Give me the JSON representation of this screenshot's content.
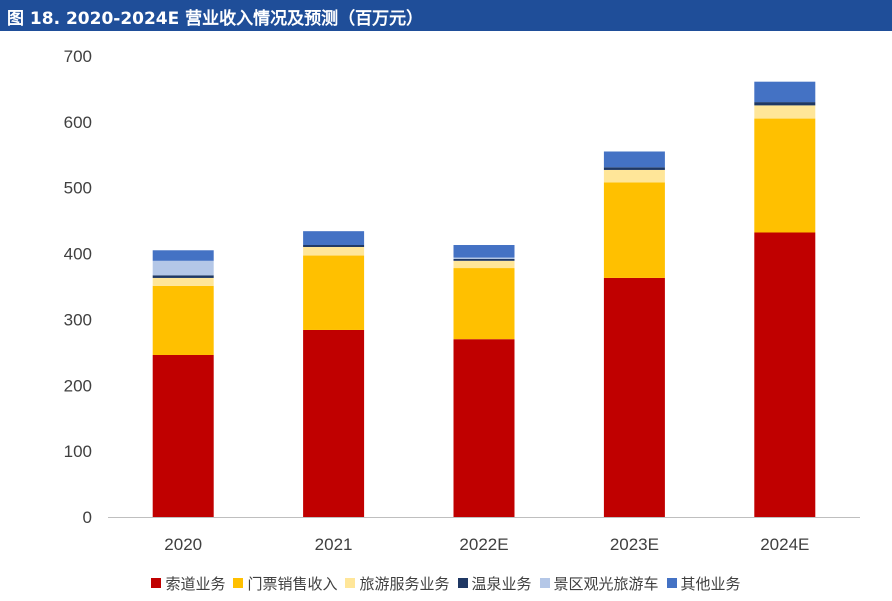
{
  "header": {
    "title": "图 18. 2020-2024E 营业收入情况及预测（百万元）"
  },
  "chart_data": {
    "type": "bar",
    "stacked": true,
    "categories": [
      "2020",
      "2021",
      "2022E",
      "2023E",
      "2024E"
    ],
    "ylim": [
      0,
      700
    ],
    "yticks": [
      0,
      100,
      200,
      300,
      400,
      500,
      600,
      700
    ],
    "grid": false,
    "legend_position": "bottom",
    "series": [
      {
        "name": "索道业务",
        "color": "#c00000",
        "values": [
          246,
          284,
          270,
          363,
          432
        ]
      },
      {
        "name": "门票销售收入",
        "color": "#ffc000",
        "values": [
          105,
          113,
          108,
          145,
          173
        ]
      },
      {
        "name": "旅游服务业务",
        "color": "#ffe699",
        "values": [
          12,
          13,
          11,
          19,
          20
        ]
      },
      {
        "name": "温泉业务",
        "color": "#1f3864",
        "values": [
          4,
          3,
          3,
          4,
          5
        ]
      },
      {
        "name": "景区观光旅游车",
        "color": "#b4c7e7",
        "values": [
          22,
          0,
          2,
          0,
          0
        ]
      },
      {
        "name": "其他业务",
        "color": "#4472c4",
        "values": [
          16,
          21,
          19,
          24,
          31
        ]
      }
    ]
  }
}
